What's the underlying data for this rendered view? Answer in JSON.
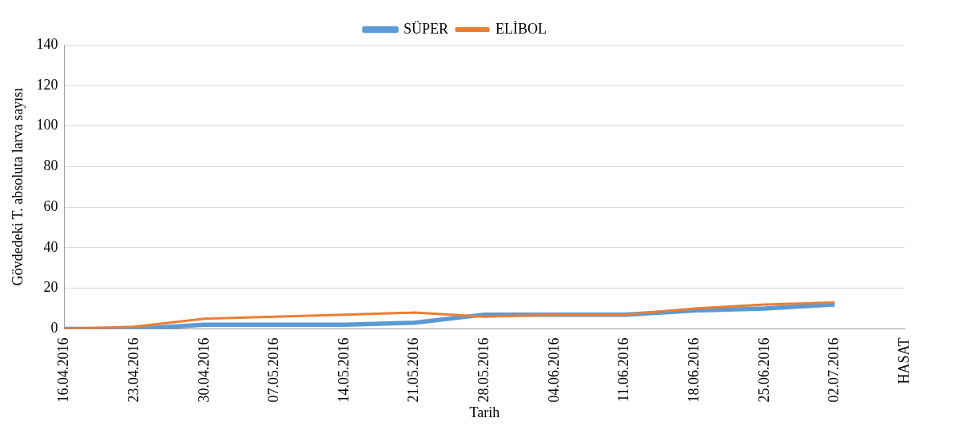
{
  "chart_data": {
    "type": "line",
    "xlabel": "Tarih",
    "ylabel": "Gövdedeki T. absoluta larva sayısı",
    "categories": [
      "16.04.2016",
      "23.04.2016",
      "30.04.2016",
      "07.05.2016",
      "14.05.2016",
      "21.05.2016",
      "28.05.2016",
      "04.06.2016",
      "11.06.2016",
      "18.06.2016",
      "25.06.2016",
      "02.07.2016",
      "HASAT"
    ],
    "series": [
      {
        "name": "SÜPER",
        "color": "#5b9bd5",
        "values": [
          0,
          0,
          2,
          2,
          2,
          3,
          7,
          7,
          7,
          9,
          10,
          12,
          null
        ]
      },
      {
        "name": "ELİBOL",
        "color": "#ed7d31",
        "values": [
          0,
          1,
          5,
          6,
          7,
          8,
          6,
          7,
          7,
          10,
          12,
          13,
          null
        ]
      }
    ],
    "ylim": [
      0,
      140
    ],
    "yticks": [
      0,
      20,
      40,
      60,
      80,
      100,
      120,
      140
    ],
    "grid": "y",
    "legend": "top",
    "marker": "none",
    "line_style": "solid"
  }
}
